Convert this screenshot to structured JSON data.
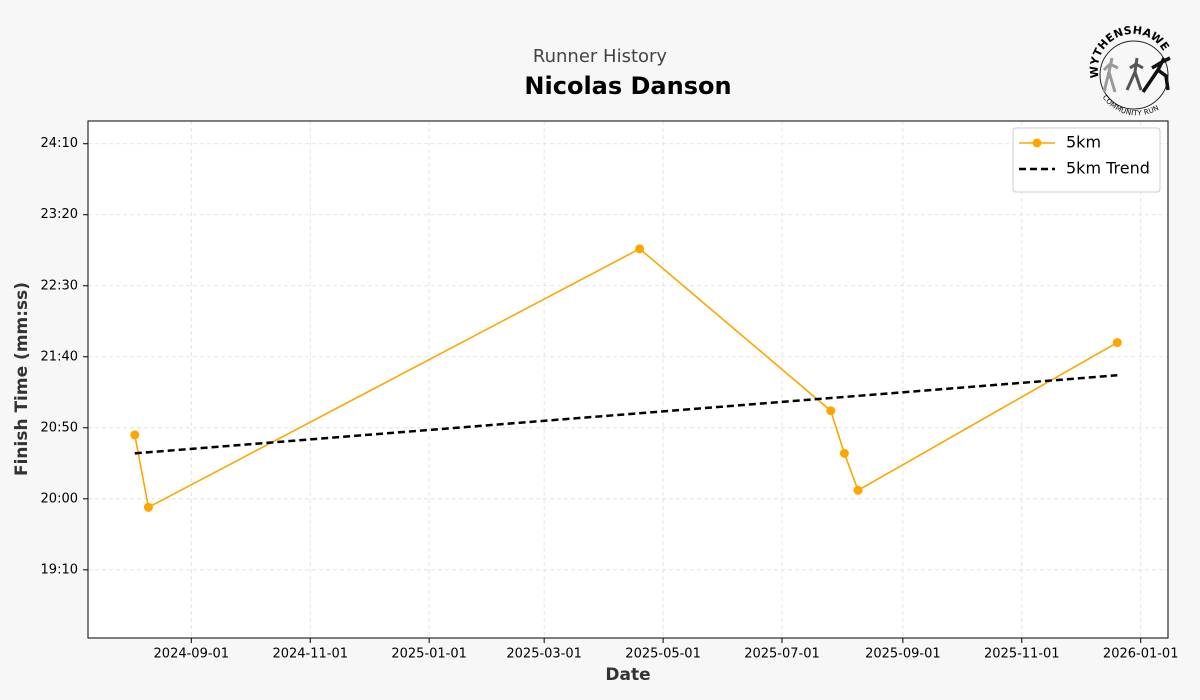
{
  "chart_data": {
    "type": "line",
    "supertitle": "Runner History",
    "title": "Nicolas Danson",
    "xlabel": "Date",
    "ylabel": "Finish Time (mm:ss)",
    "logo": {
      "top_text": "WYTHENSHAWE",
      "bottom_text": "COMMUNITY RUN"
    },
    "xlim": [
      "2024-07-10",
      "2026-01-15"
    ],
    "xticks": [
      "2024-09-01",
      "2024-11-01",
      "2025-01-01",
      "2025-03-01",
      "2025-05-01",
      "2025-07-01",
      "2025-09-01",
      "2025-11-01",
      "2026-01-01"
    ],
    "ylim": [
      1102,
      1466
    ],
    "yticks": [
      {
        "value": 1150,
        "label": "19:10"
      },
      {
        "value": 1200,
        "label": "20:00"
      },
      {
        "value": 1250,
        "label": "20:50"
      },
      {
        "value": 1300,
        "label": "21:40"
      },
      {
        "value": 1350,
        "label": "22:30"
      },
      {
        "value": 1400,
        "label": "23:20"
      },
      {
        "value": 1450,
        "label": "24:10"
      }
    ],
    "grid": true,
    "legend": "upper right",
    "series": [
      {
        "name": "5km",
        "color": "#ffa500",
        "style": "solid",
        "markers": true,
        "x": [
          "2024-08-03",
          "2024-08-10",
          "2025-04-19",
          "2025-07-26",
          "2025-08-02",
          "2025-08-09",
          "2025-12-20"
        ],
        "values": [
          1245,
          1194,
          1376,
          1262,
          1232,
          1206,
          1310
        ]
      },
      {
        "name": "5km Trend",
        "color": "#000000",
        "style": "dashed",
        "markers": false,
        "x": [
          "2024-08-03",
          "2025-12-20"
        ],
        "values": [
          1232,
          1287
        ]
      }
    ]
  }
}
